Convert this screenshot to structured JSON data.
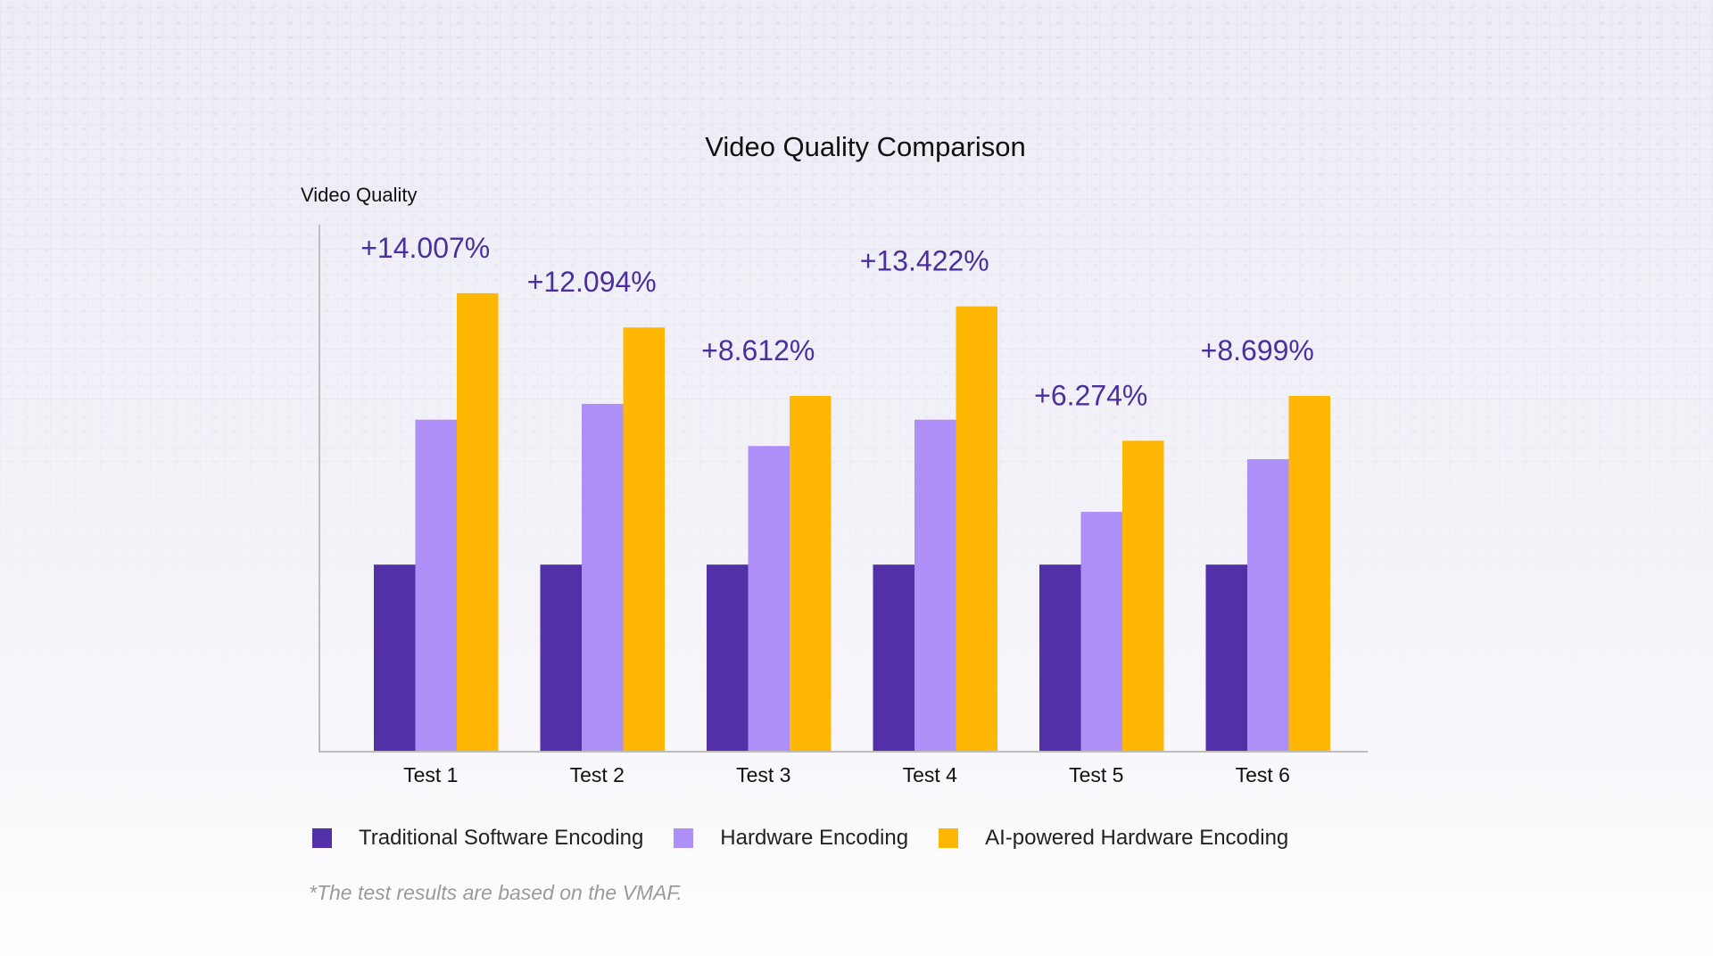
{
  "colors": {
    "traditional": "#5230a8",
    "hardware": "#ae8ff8",
    "ai": "#ffb703",
    "annotation": "#4b2f9e",
    "axis": "#bdbdbd",
    "text": "#111111"
  },
  "chart_data": {
    "type": "bar",
    "title": "Video Quality Comparison",
    "ylabel": "Video Quality",
    "xlabel": "",
    "ylim": [
      0,
      100
    ],
    "grid": false,
    "legend_position": "bottom",
    "categories": [
      "Test 1",
      "Test 2",
      "Test 3",
      "Test 4",
      "Test 5",
      "Test 6"
    ],
    "series": [
      {
        "name": "Traditional Software Encoding",
        "values": [
          35.5,
          35.5,
          35.5,
          35.5,
          35.5,
          35.5
        ]
      },
      {
        "name": "Hardware Encoding",
        "values": [
          63,
          66,
          58,
          63,
          45.5,
          55.5
        ]
      },
      {
        "name": "AI-powered Hardware Encoding",
        "values": [
          87,
          80.5,
          67.5,
          84.5,
          59,
          67.5
        ]
      }
    ],
    "annotations": [
      "+14.007%",
      "+12.094%",
      "+8.612%",
      "+13.422%",
      "+6.274%",
      "+8.699%"
    ]
  },
  "footnote": "*The test results are based on the VMAF."
}
